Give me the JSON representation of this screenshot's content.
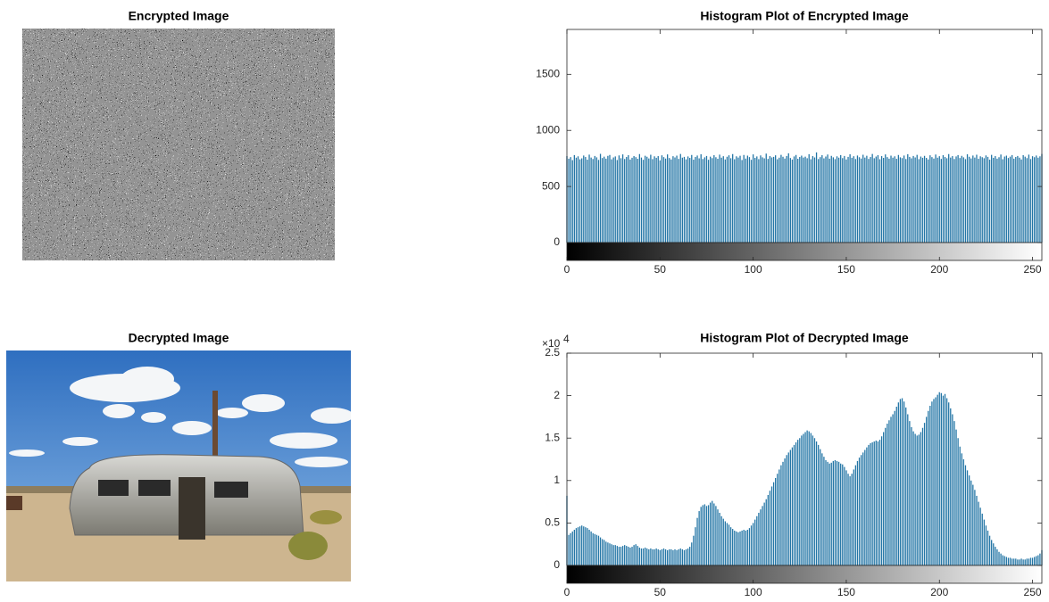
{
  "images": [
    {
      "title": "Encrypted Image"
    },
    {
      "title": "Decrypted Image"
    }
  ],
  "chart_data": [
    {
      "type": "histogram",
      "title": "Histogram Plot of Encrypted Image",
      "color": "#2476a6",
      "xlim": [
        0,
        255
      ],
      "xticks": [
        0,
        50,
        100,
        150,
        200,
        250
      ],
      "ylim": [
        0,
        1900
      ],
      "yticks": [
        0,
        500,
        1000,
        1500
      ],
      "x": [
        0,
        1,
        2,
        3,
        4,
        5,
        6,
        7,
        8,
        9,
        10,
        11,
        12,
        13,
        14,
        15,
        16,
        17,
        18,
        19,
        20,
        21,
        22,
        23,
        24,
        25,
        26,
        27,
        28,
        29,
        30,
        31,
        32,
        33,
        34,
        35,
        36,
        37,
        38,
        39,
        40,
        41,
        42,
        43,
        44,
        45,
        46,
        47,
        48,
        49,
        50,
        51,
        52,
        53,
        54,
        55,
        56,
        57,
        58,
        59,
        60,
        61,
        62,
        63,
        64,
        65,
        66,
        67,
        68,
        69,
        70,
        71,
        72,
        73,
        74,
        75,
        76,
        77,
        78,
        79,
        80,
        81,
        82,
        83,
        84,
        85,
        86,
        87,
        88,
        89,
        90,
        91,
        92,
        93,
        94,
        95,
        96,
        97,
        98,
        99,
        100,
        101,
        102,
        103,
        104,
        105,
        106,
        107,
        108,
        109,
        110,
        111,
        112,
        113,
        114,
        115,
        116,
        117,
        118,
        119,
        120,
        121,
        122,
        123,
        124,
        125,
        126,
        127,
        128,
        129,
        130,
        131,
        132,
        133,
        134,
        135,
        136,
        137,
        138,
        139,
        140,
        141,
        142,
        143,
        144,
        145,
        146,
        147,
        148,
        149,
        150,
        151,
        152,
        153,
        154,
        155,
        156,
        157,
        158,
        159,
        160,
        161,
        162,
        163,
        164,
        165,
        166,
        167,
        168,
        169,
        170,
        171,
        172,
        173,
        174,
        175,
        176,
        177,
        178,
        179,
        180,
        181,
        182,
        183,
        184,
        185,
        186,
        187,
        188,
        189,
        190,
        191,
        192,
        193,
        194,
        195,
        196,
        197,
        198,
        199,
        200,
        201,
        202,
        203,
        204,
        205,
        206,
        207,
        208,
        209,
        210,
        211,
        212,
        213,
        214,
        215,
        216,
        217,
        218,
        219,
        220,
        221,
        222,
        223,
        224,
        225,
        226,
        227,
        228,
        229,
        230,
        231,
        232,
        233,
        234,
        235,
        236,
        237,
        238,
        239,
        240,
        241,
        242,
        243,
        244,
        245,
        246,
        247,
        248,
        249,
        250,
        251,
        252,
        253,
        254,
        255
      ],
      "values": [
        771,
        748,
        762,
        735,
        780,
        757,
        769,
        742,
        751,
        776,
        763,
        739,
        784,
        758,
        745,
        772,
        760,
        737,
        791,
        754,
        766,
        748,
        773,
        781,
        742,
        759,
        768,
        736,
        777,
        752,
        786,
        745,
        763,
        779,
        740,
        756,
        771,
        762,
        747,
        789,
        758,
        738,
        774,
        765,
        750,
        783,
        744,
        769,
        756,
        771,
        733,
        778,
        762,
        749,
        786,
        754,
        741,
        770,
        759,
        775,
        746,
        790,
        757,
        764,
        742,
        768,
        755,
        781,
        739,
        763,
        776,
        751,
        787,
        745,
        760,
        772,
        738,
        766,
        753,
        779,
        761,
        747,
        784,
        757,
        770,
        741,
        765,
        778,
        752,
        789,
        743,
        769,
        758,
        774,
        736,
        781,
        749,
        775,
        762,
        738,
        786,
        755,
        768,
        744,
        777,
        760,
        751,
        793,
        746,
        771,
        759,
        764,
        778,
        743,
        757,
        782,
        765,
        749,
        772,
        796,
        754,
        740,
        768,
        781,
        747,
        763,
        775,
        758,
        766,
        752,
        788,
        743,
        771,
        759,
        804,
        745,
        762,
        779,
        751,
        767,
        785,
        748,
        773,
        760,
        744,
        769,
        757,
        780,
        753,
        772,
        741,
        764,
        787,
        756,
        770,
        745,
        776,
        761,
        749,
        783,
        758,
        774,
        746,
        763,
        790,
        752,
        767,
        779,
        743,
        771,
        755,
        786,
        762,
        748,
        775,
        757,
        769,
        747,
        781,
        760,
        753,
        776,
        745,
        788,
        764,
        751,
        772,
        759,
        782,
        744,
        767,
        756,
        773,
        755,
        741,
        778,
        762,
        749,
        785,
        757,
        770,
        746,
        779,
        763,
        752,
        789,
        758,
        771,
        745,
        768,
        780,
        754,
        773,
        760,
        744,
        787,
        765,
        750,
        776,
        758,
        783,
        747,
        769,
        761,
        752,
        777,
        764,
        739,
        782,
        756,
        771,
        748,
        761,
        785,
        743,
        767,
        775,
        754,
        766,
        780,
        748,
        763,
        772,
        757,
        741,
        779,
        766,
        753,
        784,
        745,
        770,
        761,
        776,
        757,
        769,
        790
      ]
    },
    {
      "type": "histogram",
      "title": "Histogram Plot of Decrypted Image",
      "color": "#2476a6",
      "y_exponent": {
        "base": "×10",
        "power": "4"
      },
      "xlim": [
        0,
        255
      ],
      "xticks": [
        0,
        50,
        100,
        150,
        200,
        250
      ],
      "ylim": [
        0,
        2.5
      ],
      "yticks": [
        0,
        0.5,
        1,
        1.5,
        2,
        2.5
      ],
      "x": [
        0,
        1,
        2,
        3,
        4,
        5,
        6,
        7,
        8,
        9,
        10,
        11,
        12,
        13,
        14,
        15,
        16,
        17,
        18,
        19,
        20,
        21,
        22,
        23,
        24,
        25,
        26,
        27,
        28,
        29,
        30,
        31,
        32,
        33,
        34,
        35,
        36,
        37,
        38,
        39,
        40,
        41,
        42,
        43,
        44,
        45,
        46,
        47,
        48,
        49,
        50,
        51,
        52,
        53,
        54,
        55,
        56,
        57,
        58,
        59,
        60,
        61,
        62,
        63,
        64,
        65,
        66,
        67,
        68,
        69,
        70,
        71,
        72,
        73,
        74,
        75,
        76,
        77,
        78,
        79,
        80,
        81,
        82,
        83,
        84,
        85,
        86,
        87,
        88,
        89,
        90,
        91,
        92,
        93,
        94,
        95,
        96,
        97,
        98,
        99,
        100,
        101,
        102,
        103,
        104,
        105,
        106,
        107,
        108,
        109,
        110,
        111,
        112,
        113,
        114,
        115,
        116,
        117,
        118,
        119,
        120,
        121,
        122,
        123,
        124,
        125,
        126,
        127,
        128,
        129,
        130,
        131,
        132,
        133,
        134,
        135,
        136,
        137,
        138,
        139,
        140,
        141,
        142,
        143,
        144,
        145,
        146,
        147,
        148,
        149,
        150,
        151,
        152,
        153,
        154,
        155,
        156,
        157,
        158,
        159,
        160,
        161,
        162,
        163,
        164,
        165,
        166,
        167,
        168,
        169,
        170,
        171,
        172,
        173,
        174,
        175,
        176,
        177,
        178,
        179,
        180,
        181,
        182,
        183,
        184,
        185,
        186,
        187,
        188,
        189,
        190,
        191,
        192,
        193,
        194,
        195,
        196,
        197,
        198,
        199,
        200,
        201,
        202,
        203,
        204,
        205,
        206,
        207,
        208,
        209,
        210,
        211,
        212,
        213,
        214,
        215,
        216,
        217,
        218,
        219,
        220,
        221,
        222,
        223,
        224,
        225,
        226,
        227,
        228,
        229,
        230,
        231,
        232,
        233,
        234,
        235,
        236,
        237,
        238,
        239,
        240,
        241,
        242,
        243,
        244,
        245,
        246,
        247,
        248,
        249,
        250,
        251,
        252,
        253,
        254,
        255
      ],
      "values": [
        0.82,
        0.36,
        0.38,
        0.4,
        0.42,
        0.44,
        0.45,
        0.46,
        0.47,
        0.46,
        0.45,
        0.44,
        0.42,
        0.4,
        0.38,
        0.37,
        0.36,
        0.35,
        0.33,
        0.31,
        0.3,
        0.28,
        0.27,
        0.26,
        0.25,
        0.24,
        0.24,
        0.23,
        0.22,
        0.22,
        0.23,
        0.24,
        0.23,
        0.22,
        0.21,
        0.22,
        0.24,
        0.25,
        0.23,
        0.21,
        0.2,
        0.2,
        0.21,
        0.2,
        0.19,
        0.2,
        0.19,
        0.19,
        0.2,
        0.19,
        0.18,
        0.19,
        0.2,
        0.19,
        0.18,
        0.19,
        0.19,
        0.18,
        0.19,
        0.18,
        0.19,
        0.2,
        0.19,
        0.18,
        0.19,
        0.2,
        0.22,
        0.27,
        0.35,
        0.45,
        0.56,
        0.64,
        0.69,
        0.71,
        0.72,
        0.7,
        0.71,
        0.74,
        0.76,
        0.73,
        0.7,
        0.66,
        0.62,
        0.58,
        0.55,
        0.52,
        0.5,
        0.48,
        0.45,
        0.43,
        0.41,
        0.4,
        0.39,
        0.4,
        0.41,
        0.42,
        0.41,
        0.42,
        0.44,
        0.47,
        0.5,
        0.54,
        0.58,
        0.62,
        0.66,
        0.7,
        0.74,
        0.78,
        0.83,
        0.88,
        0.93,
        0.98,
        1.03,
        1.08,
        1.13,
        1.18,
        1.22,
        1.26,
        1.3,
        1.33,
        1.36,
        1.39,
        1.42,
        1.45,
        1.48,
        1.5,
        1.53,
        1.55,
        1.57,
        1.59,
        1.58,
        1.56,
        1.53,
        1.5,
        1.46,
        1.42,
        1.37,
        1.32,
        1.28,
        1.24,
        1.22,
        1.2,
        1.21,
        1.23,
        1.24,
        1.23,
        1.22,
        1.2,
        1.19,
        1.16,
        1.12,
        1.08,
        1.05,
        1.08,
        1.13,
        1.18,
        1.23,
        1.27,
        1.3,
        1.33,
        1.36,
        1.39,
        1.42,
        1.44,
        1.45,
        1.46,
        1.47,
        1.46,
        1.48,
        1.52,
        1.57,
        1.62,
        1.67,
        1.71,
        1.75,
        1.78,
        1.82,
        1.87,
        1.92,
        1.96,
        1.97,
        1.93,
        1.86,
        1.78,
        1.7,
        1.63,
        1.58,
        1.55,
        1.53,
        1.54,
        1.57,
        1.62,
        1.68,
        1.75,
        1.82,
        1.88,
        1.93,
        1.96,
        1.98,
        2.01,
        2.04,
        2.03,
        2.0,
        2.02,
        1.97,
        1.92,
        1.85,
        1.78,
        1.7,
        1.6,
        1.5,
        1.4,
        1.32,
        1.25,
        1.18,
        1.12,
        1.06,
        1.0,
        0.95,
        0.89,
        0.82,
        0.75,
        0.68,
        0.61,
        0.54,
        0.47,
        0.41,
        0.35,
        0.3,
        0.26,
        0.22,
        0.19,
        0.16,
        0.14,
        0.12,
        0.11,
        0.1,
        0.09,
        0.09,
        0.08,
        0.08,
        0.08,
        0.07,
        0.07,
        0.08,
        0.07,
        0.07,
        0.08,
        0.08,
        0.09,
        0.09,
        0.1,
        0.11,
        0.12,
        0.14,
        0.18
      ]
    }
  ]
}
